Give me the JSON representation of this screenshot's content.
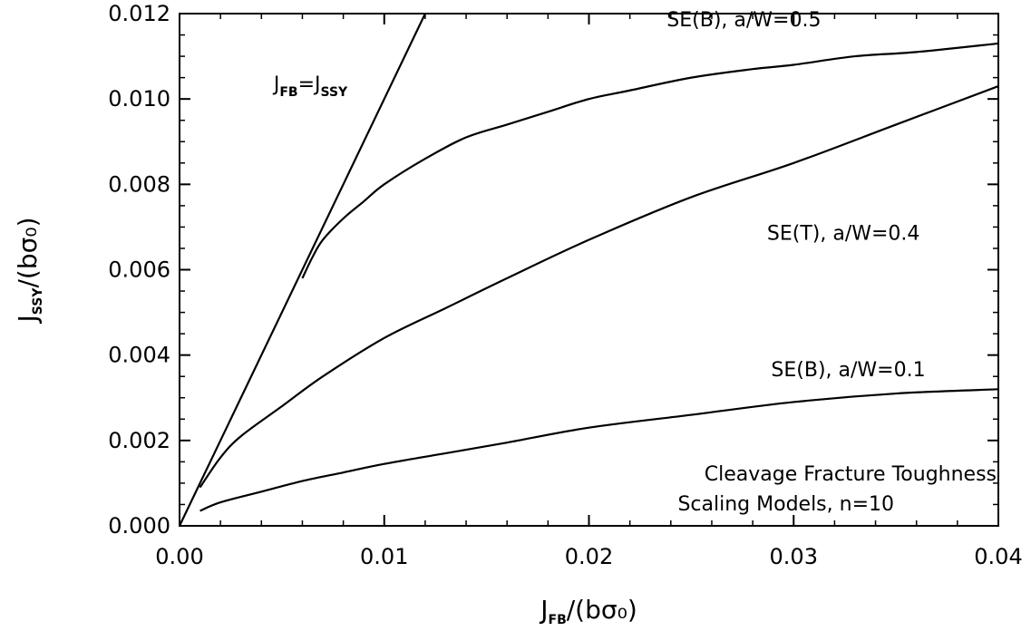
{
  "chart_data": {
    "type": "line",
    "xlabel": {
      "main": "J",
      "sub": "FB",
      "rest": "/(bσ₀)"
    },
    "ylabel": {
      "main": "J",
      "sub": "SSY",
      "rest": "/(bσ₀)"
    },
    "xlim": [
      0.0,
      0.04
    ],
    "ylim": [
      0.0,
      0.012
    ],
    "x_ticks": [
      "0.00",
      "0.01",
      "0.02",
      "0.03",
      "0.04"
    ],
    "x_tick_values": [
      0.0,
      0.01,
      0.02,
      0.03,
      0.04
    ],
    "y_ticks": [
      "0.000",
      "0.002",
      "0.004",
      "0.006",
      "0.008",
      "0.010",
      "0.012"
    ],
    "y_tick_values": [
      0.0,
      0.002,
      0.004,
      0.006,
      0.008,
      0.01,
      0.012
    ],
    "grid": false,
    "series": [
      {
        "name": "J_FB=J_SSY",
        "x": [
          0.0,
          0.012
        ],
        "y": [
          0.0,
          0.012
        ]
      },
      {
        "name": "SE(B), a/W=0.5",
        "x": [
          0.006,
          0.0065,
          0.007,
          0.008,
          0.009,
          0.01,
          0.012,
          0.014,
          0.016,
          0.018,
          0.02,
          0.022,
          0.025,
          0.028,
          0.03,
          0.033,
          0.036,
          0.04
        ],
        "y": [
          0.0058,
          0.0063,
          0.0067,
          0.0072,
          0.0076,
          0.008,
          0.0086,
          0.0091,
          0.0094,
          0.0097,
          0.01,
          0.0102,
          0.0105,
          0.0107,
          0.0108,
          0.011,
          0.0111,
          0.0113
        ]
      },
      {
        "name": "SE(T), a/W=0.4",
        "x": [
          0.001,
          0.002,
          0.003,
          0.005,
          0.007,
          0.01,
          0.013,
          0.016,
          0.02,
          0.025,
          0.03,
          0.035,
          0.04
        ],
        "y": [
          0.0009,
          0.0016,
          0.0021,
          0.0028,
          0.0035,
          0.0044,
          0.0051,
          0.0058,
          0.0067,
          0.0077,
          0.0085,
          0.0094,
          0.0103
        ]
      },
      {
        "name": "SE(B), a/W=0.1",
        "x": [
          0.001,
          0.002,
          0.004,
          0.006,
          0.008,
          0.01,
          0.013,
          0.016,
          0.02,
          0.025,
          0.03,
          0.035,
          0.04
        ],
        "y": [
          0.00035,
          0.00055,
          0.0008,
          0.00105,
          0.00125,
          0.00145,
          0.0017,
          0.00195,
          0.0023,
          0.0026,
          0.0029,
          0.0031,
          0.0032
        ]
      }
    ],
    "annotations": [
      {
        "series": "J_FB=J_SSY",
        "main1": "J",
        "sub1": "FB",
        "eq": "=",
        "main2": "J",
        "sub2": "SSY",
        "at": [
          0.0046,
          0.0102
        ]
      },
      {
        "series": "SE(B), a/W=0.5",
        "text": "SE(B),  a/W=0.5",
        "at": [
          0.0238,
          0.0117
        ]
      },
      {
        "series": "SE(T), a/W=0.4",
        "text": "SE(T),  a/W=0.4",
        "at": [
          0.0287,
          0.0067
        ]
      },
      {
        "series": "SE(B), a/W=0.1",
        "text": "SE(B),  a/W=0.1",
        "at": [
          0.0289,
          0.0035
        ]
      }
    ],
    "note_lines": [
      "Cleavage Fracture Toughness",
      "Scaling Models, n=10"
    ]
  }
}
